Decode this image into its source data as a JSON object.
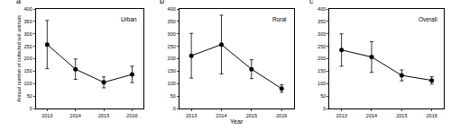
{
  "chart_data": [
    {
      "type": "line",
      "title": "a",
      "annotations": [
        "Urban"
      ],
      "ylabel": "Annual number of collected soil animals",
      "x": [
        2013,
        2014,
        2015,
        2016
      ],
      "values": [
        257,
        158,
        105,
        137
      ],
      "error": [
        97,
        41,
        22,
        33
      ],
      "color": "#000000",
      "marker": "circle",
      "line_style": "solid",
      "xlim": [
        2012.6,
        2016.4
      ],
      "xticks": [
        2013,
        2014,
        2015,
        2016
      ],
      "ylim": [
        0,
        400
      ],
      "yticks": [
        0,
        50,
        100,
        150,
        200,
        250,
        300,
        350,
        400
      ],
      "grid": false
    },
    {
      "type": "line",
      "title": "b",
      "annotations": [
        "Rural"
      ],
      "xlabel": "Year",
      "x": [
        2013,
        2014,
        2015,
        2016
      ],
      "values": [
        212,
        257,
        158,
        80
      ],
      "error": [
        90,
        118,
        38,
        15
      ],
      "color": "#000000",
      "marker": "circle",
      "line_style": "solid",
      "xlim": [
        2012.6,
        2016.4
      ],
      "xticks": [
        2013,
        2014,
        2015,
        2016
      ],
      "ylim": [
        0,
        400
      ],
      "yticks": [
        0,
        50,
        100,
        150,
        200,
        250,
        300,
        350,
        400
      ],
      "grid": false
    },
    {
      "type": "line",
      "title": "c",
      "annotations": [
        "Overall"
      ],
      "x": [
        2013,
        2014,
        2015,
        2016
      ],
      "values": [
        235,
        207,
        133,
        113
      ],
      "error": [
        65,
        62,
        22,
        15
      ],
      "color": "#000000",
      "marker": "circle",
      "line_style": "solid",
      "xlim": [
        2012.6,
        2016.4
      ],
      "xticks": [
        2013,
        2014,
        2015,
        2016
      ],
      "ylim": [
        0,
        400
      ],
      "yticks": [
        0,
        50,
        100,
        150,
        200,
        250,
        300,
        350,
        400
      ],
      "grid": false
    }
  ]
}
